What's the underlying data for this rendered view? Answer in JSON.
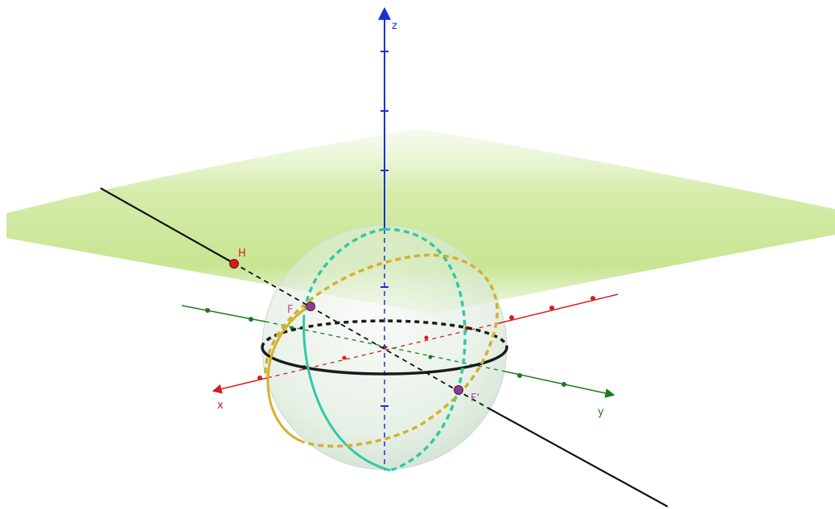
{
  "axes": {
    "x": {
      "label": "x",
      "color": "#d81b1b"
    },
    "y": {
      "label": "y",
      "color": "#1b7a1b"
    },
    "z": {
      "label": "z",
      "color": "#1a2fd6"
    }
  },
  "points": {
    "H": {
      "label": "H",
      "color": "#d81b1b"
    },
    "F": {
      "label": "F",
      "color": "#8e3a8e",
      "label_color": "#c0449a"
    },
    "F_prime": {
      "label": "F'",
      "color": "#8e3a8e",
      "label_color": "#c0449a"
    }
  },
  "colors": {
    "plane": "#b8e07a",
    "sphere": "#cfe6cf",
    "equator": "#1a1a1a",
    "meridian_teal": "#2fc9a7",
    "meridian_gold": "#d4b12a",
    "line": "#111111"
  }
}
